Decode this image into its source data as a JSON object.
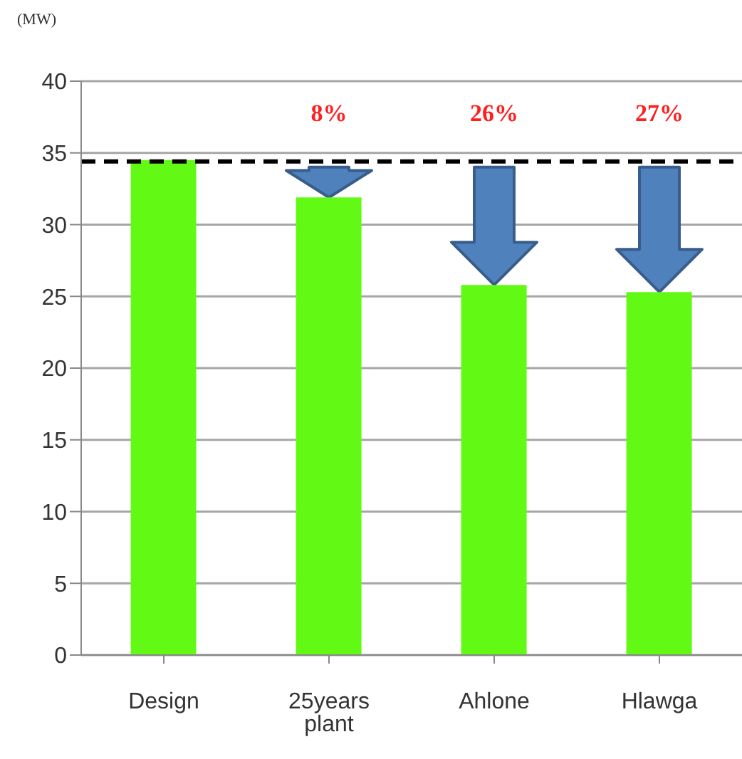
{
  "chart_data": {
    "type": "bar",
    "ylabel": "(MW)",
    "categories": [
      "Design",
      "25years plant",
      "Ahlone",
      "Hlawga"
    ],
    "values": [
      34.5,
      31.9,
      25.8,
      25.3
    ],
    "color": "#62fa14",
    "ylim": [
      0,
      40
    ],
    "yticks": [
      0,
      5,
      10,
      15,
      20,
      25,
      30,
      35,
      40
    ],
    "grid": "y",
    "ref_lines": [
      {
        "axis": "y",
        "value": 34.4,
        "color": "#000000",
        "line_style": "dashed"
      }
    ],
    "annotations": [
      "8%",
      "26%",
      "27%"
    ]
  }
}
